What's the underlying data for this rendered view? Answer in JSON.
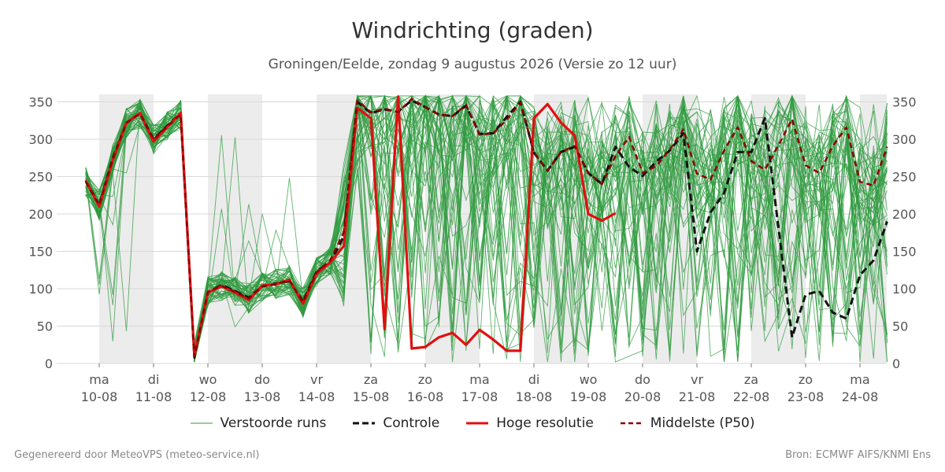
{
  "header": {
    "title": "Windrichting (graden)",
    "subtitle": "Groningen/Eelde, zondag  9 augustus 2026 (Versie zo 12 uur)"
  },
  "footer": {
    "left": "Gegenereerd door MeteoVPS (meteo-service.nl)",
    "right": "Bron: ECMWF AIFS/KNMI Ens"
  },
  "chart_data": {
    "type": "line",
    "title": "Windrichting (graden)",
    "ylim": [
      0,
      360
    ],
    "xlim": [
      -0.8,
      14.5
    ],
    "y_ticks": [
      0,
      50,
      100,
      150,
      200,
      250,
      300,
      350
    ],
    "x_ticks": [
      {
        "x": 0,
        "day": "ma",
        "date": "10-08"
      },
      {
        "x": 1,
        "day": "di",
        "date": "11-08"
      },
      {
        "x": 2,
        "day": "wo",
        "date": "12-08"
      },
      {
        "x": 3,
        "day": "do",
        "date": "13-08"
      },
      {
        "x": 4,
        "day": "vr",
        "date": "14-08"
      },
      {
        "x": 5,
        "day": "za",
        "date": "15-08"
      },
      {
        "x": 6,
        "day": "zo",
        "date": "16-08"
      },
      {
        "x": 7,
        "day": "ma",
        "date": "17-08"
      },
      {
        "x": 8,
        "day": "di",
        "date": "18-08"
      },
      {
        "x": 9,
        "day": "wo",
        "date": "19-08"
      },
      {
        "x": 10,
        "day": "do",
        "date": "20-08"
      },
      {
        "x": 11,
        "day": "vr",
        "date": "21-08"
      },
      {
        "x": 12,
        "day": "za",
        "date": "22-08"
      },
      {
        "x": 13,
        "day": "zo",
        "date": "23-08"
      },
      {
        "x": 14,
        "day": "ma",
        "date": "24-08"
      }
    ],
    "shaded_days": [
      [
        0,
        1
      ],
      [
        2,
        3
      ],
      [
        4,
        5
      ],
      [
        6,
        7
      ],
      [
        8,
        9
      ],
      [
        10,
        11
      ],
      [
        12,
        13
      ],
      [
        14,
        14.5
      ]
    ],
    "grid": true,
    "legend_position": "bottom",
    "legend": [
      "Verstoorde runs",
      "Controle",
      "Hoge resolutie",
      "Middelste (P50)"
    ],
    "colors": {
      "ensemble": "#2e9a3e",
      "control": "#111111",
      "hires": "#e01010",
      "median": "#8b0000",
      "shade": "#ececec",
      "grid": "#d9d9d9"
    },
    "series": [
      {
        "name": "Controle",
        "style": "dashed",
        "points": [
          [
            -0.25,
            245
          ],
          [
            -0.0,
            212
          ],
          [
            0.25,
            275
          ],
          [
            0.5,
            322
          ],
          [
            0.75,
            335
          ],
          [
            1.0,
            300
          ],
          [
            1.25,
            318
          ],
          [
            1.5,
            335
          ],
          [
            1.75,
            8
          ],
          [
            2.0,
            95
          ],
          [
            2.25,
            105
          ],
          [
            2.5,
            97
          ],
          [
            2.75,
            88
          ],
          [
            3.0,
            103
          ],
          [
            3.25,
            107
          ],
          [
            3.5,
            110
          ],
          [
            3.75,
            83
          ],
          [
            4.0,
            123
          ],
          [
            4.25,
            135
          ],
          [
            4.5,
            170
          ],
          [
            4.75,
            350
          ],
          [
            5.0,
            335
          ],
          [
            5.25,
            340
          ],
          [
            5.5,
            337
          ],
          [
            5.75,
            352
          ],
          [
            6.0,
            343
          ],
          [
            6.25,
            333
          ],
          [
            6.5,
            331
          ],
          [
            6.75,
            345
          ],
          [
            7.0,
            307
          ],
          [
            7.25,
            308
          ],
          [
            7.5,
            330
          ],
          [
            7.75,
            350
          ],
          [
            8.0,
            282
          ],
          [
            8.25,
            258
          ],
          [
            8.5,
            283
          ],
          [
            8.75,
            290
          ],
          [
            9.0,
            255
          ],
          [
            9.25,
            240
          ],
          [
            9.5,
            290
          ],
          [
            9.75,
            263
          ],
          [
            10.0,
            251
          ],
          [
            10.25,
            270
          ],
          [
            10.5,
            285
          ],
          [
            10.75,
            308
          ],
          [
            11.0,
            150
          ],
          [
            11.25,
            202
          ],
          [
            11.5,
            228
          ],
          [
            11.75,
            283
          ],
          [
            12.0,
            283
          ],
          [
            12.25,
            328
          ],
          [
            12.5,
            362
          ],
          [
            12.75,
            35
          ],
          [
            13.0,
            92
          ],
          [
            13.25,
            97
          ],
          [
            13.5,
            68
          ],
          [
            13.75,
            60
          ],
          [
            14.0,
            118
          ],
          [
            14.25,
            138
          ],
          [
            14.5,
            190
          ]
        ]
      },
      {
        "name": "Hoge resolutie",
        "style": "solid",
        "points": [
          [
            -0.25,
            245
          ],
          [
            -0.0,
            210
          ],
          [
            0.25,
            272
          ],
          [
            0.5,
            322
          ],
          [
            0.75,
            335
          ],
          [
            1.0,
            297
          ],
          [
            1.25,
            316
          ],
          [
            1.5,
            335
          ],
          [
            1.75,
            10
          ],
          [
            2.0,
            95
          ],
          [
            2.25,
            103
          ],
          [
            2.5,
            95
          ],
          [
            2.75,
            85
          ],
          [
            3.0,
            104
          ],
          [
            3.25,
            106
          ],
          [
            3.5,
            112
          ],
          [
            3.75,
            80
          ],
          [
            4.0,
            120
          ],
          [
            4.25,
            135
          ],
          [
            4.5,
            157
          ],
          [
            4.75,
            342
          ],
          [
            5.0,
            328
          ],
          [
            5.25,
            46
          ],
          [
            5.5,
            357
          ],
          [
            5.75,
            20
          ],
          [
            6.0,
            22
          ],
          [
            6.25,
            35
          ],
          [
            6.5,
            41
          ],
          [
            6.75,
            25
          ],
          [
            7.0,
            45
          ],
          [
            7.25,
            32
          ],
          [
            7.5,
            17
          ],
          [
            7.75,
            17
          ],
          [
            8.0,
            328
          ],
          [
            8.25,
            347
          ],
          [
            8.5,
            322
          ],
          [
            8.75,
            305
          ],
          [
            9.0,
            200
          ],
          [
            9.25,
            191
          ],
          [
            9.5,
            201
          ]
        ]
      },
      {
        "name": "Middelste (P50)",
        "style": "dashed",
        "points": [
          [
            -0.25,
            243
          ],
          [
            -0.0,
            212
          ],
          [
            0.25,
            274
          ],
          [
            0.5,
            322
          ],
          [
            0.75,
            334
          ],
          [
            1.0,
            300
          ],
          [
            1.25,
            317
          ],
          [
            1.5,
            333
          ],
          [
            1.75,
            9
          ],
          [
            2.0,
            96
          ],
          [
            2.25,
            104
          ],
          [
            2.5,
            96
          ],
          [
            2.75,
            87
          ],
          [
            3.0,
            103
          ],
          [
            3.25,
            106
          ],
          [
            3.5,
            111
          ],
          [
            3.75,
            82
          ],
          [
            4.0,
            122
          ],
          [
            4.25,
            138
          ],
          [
            4.5,
            175
          ],
          [
            4.75,
            352
          ],
          [
            5.0,
            336
          ],
          [
            5.25,
            341
          ],
          [
            5.5,
            336
          ],
          [
            5.75,
            354
          ],
          [
            6.0,
            343
          ],
          [
            6.25,
            333
          ],
          [
            6.5,
            331
          ],
          [
            6.75,
            346
          ],
          [
            7.0,
            306
          ],
          [
            7.25,
            308
          ],
          [
            7.5,
            326
          ],
          [
            7.75,
            349
          ],
          [
            8.0,
            282
          ],
          [
            8.25,
            258
          ],
          [
            8.5,
            283
          ],
          [
            8.75,
            291
          ],
          [
            9.0,
            255
          ],
          [
            9.25,
            240
          ],
          [
            9.5,
            277
          ],
          [
            9.75,
            303
          ],
          [
            10.0,
            255
          ],
          [
            10.25,
            264
          ],
          [
            10.5,
            286
          ],
          [
            10.75,
            313
          ],
          [
            11.0,
            254
          ],
          [
            11.25,
            246
          ],
          [
            11.5,
            285
          ],
          [
            11.75,
            316
          ],
          [
            12.0,
            271
          ],
          [
            12.25,
            259
          ],
          [
            12.5,
            292
          ],
          [
            12.75,
            327
          ],
          [
            13.0,
            265
          ],
          [
            13.25,
            255
          ],
          [
            13.5,
            291
          ],
          [
            13.75,
            316
          ],
          [
            14.0,
            243
          ],
          [
            14.25,
            238
          ],
          [
            14.5,
            290
          ]
        ]
      }
    ],
    "ensemble": {
      "name": "Verstoorde runs",
      "members": 50,
      "x_start": -0.25,
      "x_step": 0.25,
      "spread_note": "tight cluster 10-08 to 14-08, scattered over 0-360 from 15-08 onward"
    }
  }
}
